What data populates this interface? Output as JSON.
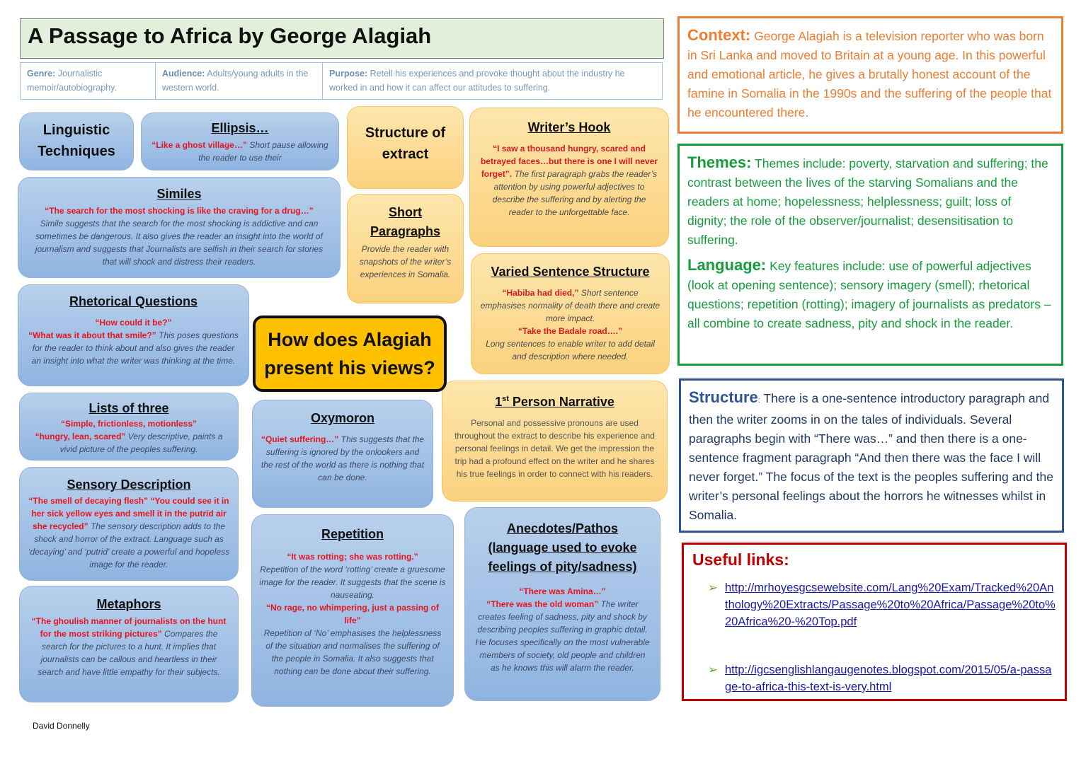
{
  "header": {
    "title": "A Passage to Africa by George Alagiah",
    "genre": {
      "label": "Genre:",
      "text": "Journalistic memoir/autobiography."
    },
    "audience": {
      "label": "Audience:",
      "text": "Adults/young adults in the western world."
    },
    "purpose": {
      "label": "Purpose:",
      "text": "Retell his experiences and provoke thought about the industry he worked in and how it can affect our attitudes to suffering."
    }
  },
  "cards": {
    "linguistic": {
      "title": "Linguistic Techniques"
    },
    "ellipsis": {
      "title": "Ellipsis…",
      "quote": "“Like a ghost village…”",
      "text": "Short pause allowing the reader to use their"
    },
    "similes": {
      "title": "Similes",
      "quote": "“The search for the most shocking is like the craving for a drug…”",
      "text": "Simile suggests that the search for the most shocking is addictive and can sometimes be dangerous. It also gives the reader an insight into the world of journalism and suggests that Journalists are selfish in their search for stories that will shock and distress their readers."
    },
    "rhetorical": {
      "title": "Rhetorical Questions",
      "quote1": "“How could it be?”",
      "quote2": "“What was it about that smile?”",
      "text": "This poses questions for the reader to think about and also gives the reader an insight into what the writer was thinking at the time."
    },
    "lists": {
      "title": "Lists of three",
      "quote1": "“Simple, frictionless, motionless”",
      "quote2": "“hungry, lean, scared”",
      "text": "Very descriptive, paints a vivid picture of the peoples suffering."
    },
    "sensory": {
      "title": "Sensory Description",
      "quote": "“The smell of decaying flesh” “You could see it in her sick yellow eyes and smell it in the putrid air she recycled”",
      "text": "The sensory description adds to the shock and horror of the extract. Language such as ‘decaying’ and ‘putrid’ create a powerful and hopeless image for the reader."
    },
    "metaphors": {
      "title": "Metaphors",
      "quote": "“The ghoulish manner of journalists on the hunt for the most striking pictures”",
      "text": "Compares the search for the pictures to a hunt. It implies that journalists can be callous and heartless in their search and have little empathy for their subjects."
    },
    "oxymoron": {
      "title": "Oxymoron",
      "quote": "“Quiet suffering…”",
      "text": "This suggests that the suffering is ignored by the onlookers and the rest of the world as there is nothing that can be done."
    },
    "repetition": {
      "title": "Repetition",
      "quote1": "“It was rotting; she was rotting.”",
      "text1": "Repetition of the word ‘rotting’ create a gruesome image for the reader. It suggests that the scene is nauseating.",
      "quote2": "“No rage, no whimpering, just a passing of life”",
      "text2": "Repetition of ‘No’ emphasises the helplessness of the situation and normalises the suffering of the people in Somalia. It also suggests that nothing can be done about their suffering."
    },
    "anecdotes": {
      "title": "Anecdotes/Pathos (language used to evoke feelings of pity/sadness)",
      "quote1": "“There was Amina…”",
      "quote2": "“There was the old woman”",
      "text": "The writer creates feeling of sadness, pity and shock by describing peoples suffering in graphic detail. He focuses specifically on the most vulnerable members of society, old people and children as he knows this will alarm the reader."
    },
    "structure_heading": {
      "title": "Structure of extract"
    },
    "short_paragraphs": {
      "title": "Short Paragraphs",
      "text": "Provide the reader with snapshots of the writer’s experiences in Somalia."
    },
    "hook": {
      "title": "Writer’s Hook",
      "quote": "“I saw a thousand hungry, scared and betrayed faces…but there is one I will never forget”.",
      "text": "The first paragraph grabs the reader’s attention by using powerful adjectives to describe the suffering and by alerting the reader to the unforgettable face."
    },
    "varied": {
      "title": "Varied Sentence Structure",
      "quote1": "“Habiba had died,”",
      "text1": "Short sentence emphasises normality of death there and create more impact.",
      "quote2": "“Take the Badale road….”",
      "text2": "Long sentences to enable writer to add detail and description where needed."
    },
    "first_person": {
      "title_num": "1",
      "title_sup": "st",
      "title_rest": " Person Narrative",
      "text": "Personal and possessive pronouns are used throughout the extract to describe his experience and personal feelings in detail. We get the impression the trip had a profound effect on the writer and he shares his true feelings in order to connect with his readers."
    }
  },
  "central": {
    "question": "How does Alagiah present his views?"
  },
  "context": {
    "label": "Context:",
    "text": "George Alagiah is a television reporter who was born in Sri Lanka and moved to Britain at a young age. In this powerful and emotional article, he gives a brutally honest account of the famine in Somalia in the 1990s and the suffering of the people that he encountered there."
  },
  "themes": {
    "label": "Themes:",
    "text": "Themes include: poverty, starvation and suffering; the contrast between the lives of the starving Somalians and the readers at home; hopelessness; helplessness; guilt; loss of dignity; the role of the observer/journalist; desensitisation to suffering."
  },
  "language": {
    "label": "Language:",
    "text": "Key features include: use of powerful adjectives (look at opening sentence); sensory imagery (smell); rhetorical questions; repetition (rotting); imagery of journalists as predators – all combine to create sadness, pity and shock in the reader."
  },
  "structure": {
    "label": "Structure",
    "colon": ":",
    "text": "There is a one-sentence introductory paragraph and then the writer zooms in on the tales of individuals. Several paragraphs begin with “There was…” and then there is a one-sentence fragment paragraph “And then there was the face I will never forget.” The focus of the text is the peoples suffering and the writer’s personal feelings about the horrors he witnesses whilst in Somalia."
  },
  "links": {
    "title": "Useful links:",
    "bullet_icon": "arrow-bullet-icon",
    "items": [
      "http://mrhoyesgcsewebsite.com/Lang%20Exam/Tracked%20Anthology%20Extracts/Passage%20to%20Africa/Passage%20to%20Africa%20-%20Top.pdf",
      "http://igcsenglishlangaugenotes.blogspot.com/2015/05/a-passage-to-africa-this-text-is-very.html"
    ]
  },
  "footer": {
    "author": "David Donnelly"
  },
  "colors": {
    "quote": "#e8141e",
    "context": "#ed7d31",
    "themes": "#169c3c",
    "structure": "#2f5597",
    "links": "#c00000",
    "central": "#ffc000"
  }
}
